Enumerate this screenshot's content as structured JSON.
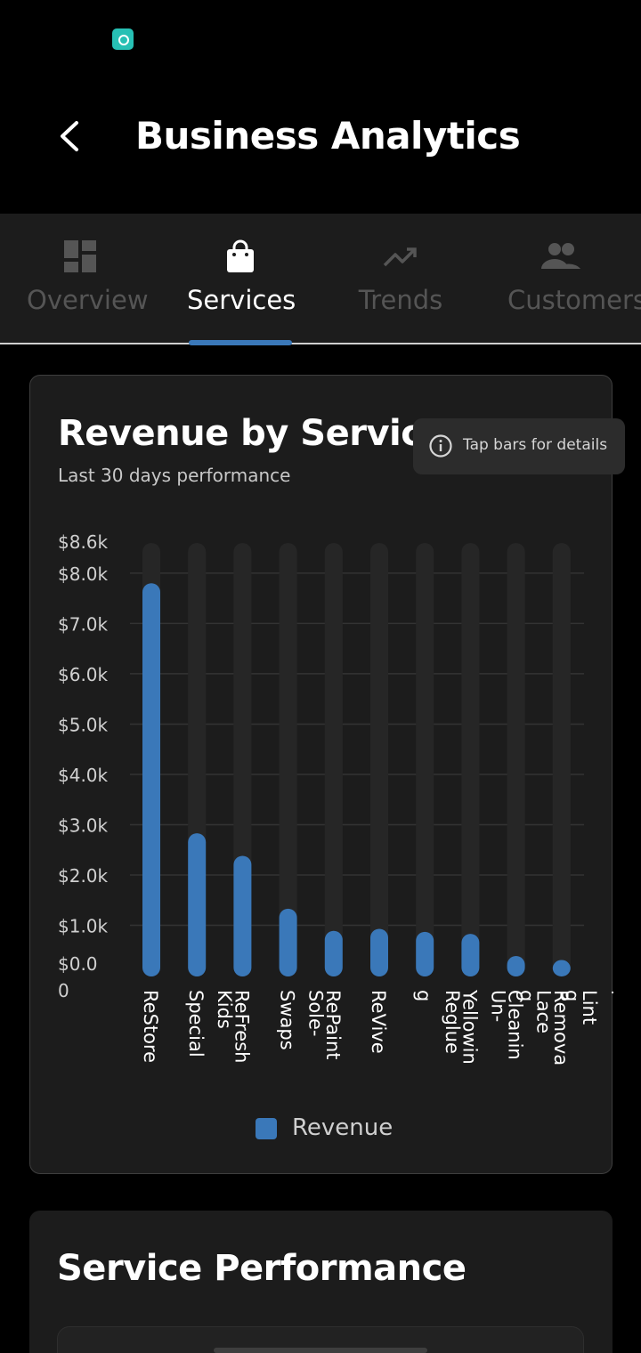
{
  "header": {
    "title": "Business Analytics"
  },
  "tabs": [
    {
      "label": "Overview",
      "icon": "dashboard-icon",
      "active": false
    },
    {
      "label": "Services",
      "icon": "shopping-bag-icon",
      "active": true
    },
    {
      "label": "Trends",
      "icon": "trending-up-icon",
      "active": false
    },
    {
      "label": "Customers",
      "icon": "people-icon",
      "active": false
    }
  ],
  "revenue_card": {
    "title": "Revenue by Service",
    "subtitle": "Last 30 days performance",
    "hint": "Tap bars for details",
    "legend": "Revenue"
  },
  "performance_card": {
    "title": "Service Performance"
  },
  "colors": {
    "accent": "#3a78b9",
    "status_icon": "#27c0b4"
  },
  "chart_data": {
    "type": "bar",
    "title": "Revenue by Service",
    "subtitle": "Last 30 days performance",
    "categories": [
      "ReStore",
      "Special Kids",
      "ReFresh",
      "Swaps Sole-",
      "RePaint",
      "ReVive",
      "Reglue",
      "Yellowing Un-",
      "Cleaning Lace",
      "Removal Lint"
    ],
    "category_lines": [
      [
        "ReStore"
      ],
      [
        "Special",
        "Kids"
      ],
      [
        "ReFresh"
      ],
      [
        "Swaps",
        "Sole-"
      ],
      [
        "RePaint"
      ],
      [
        "ReVive"
      ],
      [
        "g",
        "Reglue"
      ],
      [
        "Yellowin",
        "Un-",
        "g"
      ],
      [
        "Cleanin",
        "Lace",
        "g"
      ],
      [
        "Remova",
        "Lint",
        "l"
      ]
    ],
    "series": [
      {
        "name": "Revenue",
        "values": [
          7800,
          2830,
          2380,
          1330,
          890,
          930,
          870,
          830,
          390,
          310
        ]
      }
    ],
    "y_ticks": [
      "$0.0",
      "$1.0k",
      "$2.0k",
      "$3.0k",
      "$4.0k",
      "$5.0k",
      "$6.0k",
      "$7.0k",
      "$8.0k",
      "$8.6k"
    ],
    "y_tick_values": [
      0,
      1000,
      2000,
      3000,
      4000,
      5000,
      6000,
      7000,
      8000,
      8600
    ],
    "y_tick_extra": "0",
    "ylim": [
      0,
      8600
    ],
    "grid": true,
    "legend_position": "bottom-center"
  }
}
